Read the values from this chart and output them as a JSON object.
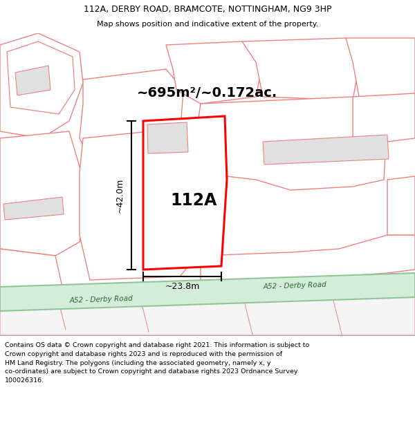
{
  "title_line1": "112A, DERBY ROAD, BRAMCOTE, NOTTINGHAM, NG9 3HP",
  "title_line2": "Map shows position and indicative extent of the property.",
  "area_label": "~695m²/~0.172ac.",
  "property_label": "112A",
  "dim_height": "~42.0m",
  "dim_width": "~23.8m",
  "road_label": "A52 - Derby Road",
  "footer_text": "Contains OS data © Crown copyright and database right 2021. This information is subject to\nCrown copyright and database rights 2023 and is reproduced with the permission of\nHM Land Registry. The polygons (including the associated geometry, namely x, y\nco-ordinates) are subject to Crown copyright and database rights 2023 Ordnance Survey\n100026316.",
  "bg_color": "#ffffff",
  "map_bg": "#ffffff",
  "road_fill": "#d4edda",
  "road_stroke": "#90c695",
  "property_stroke": "#ff0000",
  "property_fill": "#ffffff",
  "parcel_stroke": "#f08080",
  "parcel_fill": "#ffffff",
  "building_fill": "#e0e0e0",
  "building_stroke": "#f08080"
}
